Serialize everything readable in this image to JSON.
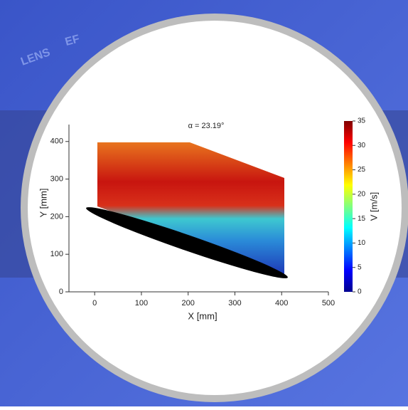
{
  "background_text": [
    "LENS",
    "EF"
  ],
  "chart_data": {
    "type": "field",
    "title": "α = 23.19°",
    "x_label": "X [mm]",
    "y_label": "Y [mm]",
    "xlim": [
      -55,
      500
    ],
    "xticks": [
      0,
      100,
      200,
      300,
      400,
      500
    ],
    "ylim": [
      0,
      445
    ],
    "yticks": [
      0,
      100,
      200,
      300,
      400
    ],
    "colorbar": {
      "label": "V [m/s]",
      "lim": [
        0,
        35
      ],
      "ticks": [
        0,
        5,
        10,
        15,
        20,
        25,
        30,
        35
      ],
      "colormap": "jet"
    }
  }
}
